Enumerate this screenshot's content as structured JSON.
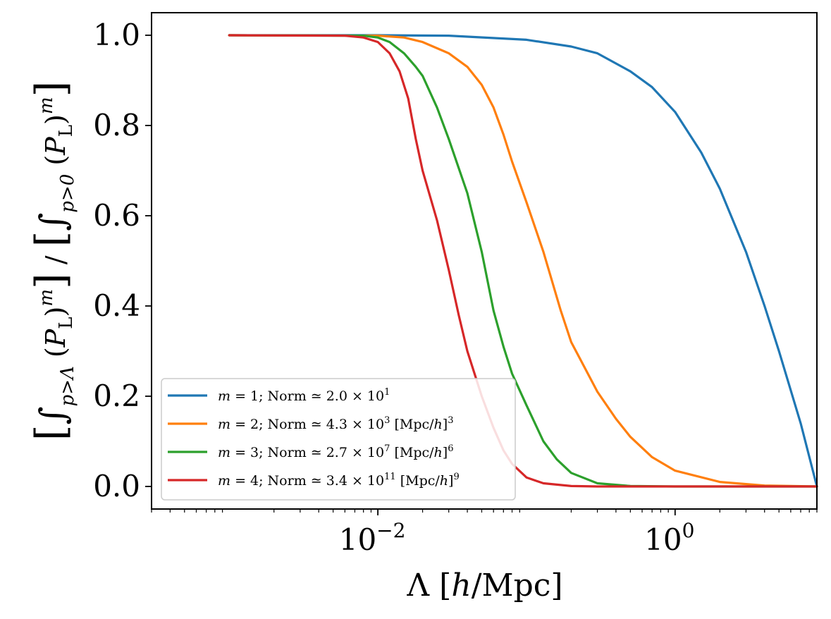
{
  "chart_data": {
    "type": "line",
    "xscale": "log",
    "xlim": [
      0.0003,
      9.0
    ],
    "ylim": [
      -0.05,
      1.05
    ],
    "xlabel": "Λ [h/Mpc]",
    "ylabel": "[∫p>Λ (PL)m] / [∫p>0 (PL)m]",
    "xticks": [
      {
        "value": 0.01,
        "base": "10",
        "exp": "−2"
      },
      {
        "value": 1.0,
        "base": "10",
        "exp": "0"
      }
    ],
    "yticks": [
      {
        "value": 0.0,
        "label": "0.0"
      },
      {
        "value": 0.2,
        "label": "0.2"
      },
      {
        "value": 0.4,
        "label": "0.4"
      },
      {
        "value": 0.6,
        "label": "0.6"
      },
      {
        "value": 0.8,
        "label": "0.8"
      },
      {
        "value": 1.0,
        "label": "1.0"
      }
    ],
    "legend_position": "lower-left",
    "series": [
      {
        "name": "m = 1; Norm ≃ 2.0 × 10^1",
        "m": "1",
        "norm_mant": "2.0",
        "norm_exp": "1",
        "unit_exp": "",
        "color": "#1f77b4",
        "x": [
          0.001,
          0.01,
          0.03,
          0.1,
          0.2,
          0.3,
          0.5,
          0.7,
          1.0,
          1.5,
          2.0,
          3.0,
          4.0,
          5.0,
          7.0,
          9.0
        ],
        "y": [
          1.0,
          1.0,
          0.999,
          0.99,
          0.975,
          0.96,
          0.92,
          0.885,
          0.83,
          0.74,
          0.66,
          0.52,
          0.4,
          0.3,
          0.14,
          0.0
        ]
      },
      {
        "name": "m = 2; Norm ≃ 4.3 × 10^3 [Mpc/h]^3",
        "m": "2",
        "norm_mant": "4.3",
        "norm_exp": "3",
        "unit_exp": "3",
        "color": "#ff7f0e",
        "x": [
          0.001,
          0.01,
          0.015,
          0.02,
          0.03,
          0.04,
          0.05,
          0.06,
          0.07,
          0.08,
          0.1,
          0.13,
          0.17,
          0.2,
          0.3,
          0.4,
          0.5,
          0.7,
          1.0,
          2.0,
          4.0,
          9.0
        ],
        "y": [
          1.0,
          0.999,
          0.995,
          0.985,
          0.96,
          0.93,
          0.89,
          0.84,
          0.78,
          0.72,
          0.63,
          0.52,
          0.39,
          0.32,
          0.21,
          0.15,
          0.11,
          0.065,
          0.035,
          0.01,
          0.002,
          0.0
        ]
      },
      {
        "name": "m = 3; Norm ≃ 2.7 × 10^7 [Mpc/h]^6",
        "m": "3",
        "norm_mant": "2.7",
        "norm_exp": "7",
        "unit_exp": "6",
        "color": "#2ca02c",
        "x": [
          0.001,
          0.008,
          0.01,
          0.012,
          0.015,
          0.018,
          0.02,
          0.025,
          0.03,
          0.04,
          0.05,
          0.06,
          0.07,
          0.08,
          0.1,
          0.13,
          0.16,
          0.2,
          0.3,
          0.5,
          1.0,
          9.0
        ],
        "y": [
          1.0,
          0.999,
          0.995,
          0.985,
          0.96,
          0.93,
          0.91,
          0.84,
          0.77,
          0.65,
          0.52,
          0.39,
          0.31,
          0.25,
          0.18,
          0.1,
          0.06,
          0.03,
          0.007,
          0.001,
          0.0,
          0.0
        ]
      },
      {
        "name": "m = 4; Norm ≃ 3.4 × 10^11 [Mpc/h]^9",
        "m": "4",
        "norm_mant": "3.4",
        "norm_exp": "11",
        "unit_exp": "9",
        "color": "#d62728",
        "x": [
          0.001,
          0.006,
          0.008,
          0.01,
          0.012,
          0.014,
          0.016,
          0.018,
          0.02,
          0.025,
          0.03,
          0.035,
          0.04,
          0.05,
          0.06,
          0.07,
          0.08,
          0.1,
          0.13,
          0.2,
          0.3,
          9.0
        ],
        "y": [
          1.0,
          0.999,
          0.995,
          0.985,
          0.96,
          0.92,
          0.86,
          0.77,
          0.7,
          0.59,
          0.48,
          0.38,
          0.3,
          0.2,
          0.13,
          0.08,
          0.05,
          0.02,
          0.007,
          0.001,
          0.0,
          0.0
        ]
      }
    ]
  }
}
